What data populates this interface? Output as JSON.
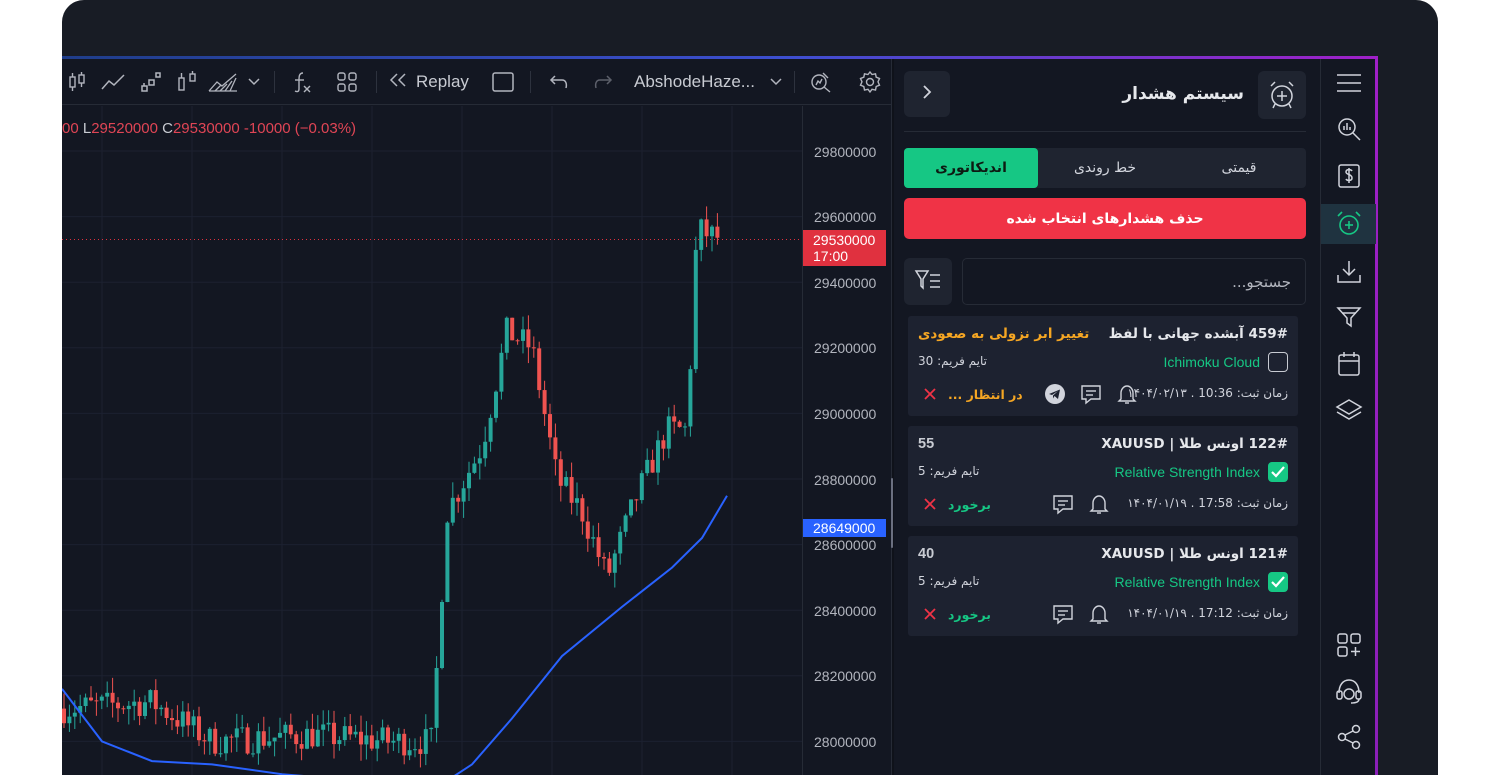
{
  "toolbar": {
    "replay_label": "Replay",
    "symbol_label": "AbshodeHaze...",
    "icons": [
      "candles-icon",
      "line-chart-icon",
      "step-chart-icon",
      "bars-icon",
      "area-chart-icon",
      "chevron-down-icon",
      "indicators-icon",
      "layouts-icon",
      "replay-icon",
      "rectangle-icon",
      "undo-icon",
      "redo-icon",
      "chevron-down-icon",
      "magnifier-chart-icon",
      "gear-icon"
    ]
  },
  "ohlc": {
    "o_value": "00",
    "l_key": "L",
    "l_value": "29520000",
    "c_key": "C",
    "c_value": "29530000",
    "change": "-10000 (−0.03%)"
  },
  "price_axis": {
    "labels": [
      "29800000",
      "29600000",
      "29400000",
      "29200000",
      "29000000",
      "28800000",
      "28600000",
      "28400000",
      "28200000",
      "28000000"
    ],
    "current_price": "29530000",
    "current_time": "17:00",
    "ma_price": "28649000"
  },
  "colors": {
    "up": "#26a69a",
    "down": "#ef5350",
    "ma_line": "#2962ff",
    "accent_green": "#16c784",
    "accent_red": "#f03346"
  },
  "panel": {
    "title": "سیستم هشدار",
    "tabs": [
      {
        "label": "قیمتی",
        "active": false
      },
      {
        "label": "خط روندی",
        "active": false
      },
      {
        "label": "اندیکاتوری",
        "active": true
      }
    ],
    "delete_label": "حذف هشدارهای انتخاب شده",
    "search_placeholder": "جستجو...",
    "alerts": [
      {
        "title": "459# آبشده جهانی با لفظ",
        "side": "تغییر ابر نزولی به صعودی",
        "indicator": "Ichimoku Cloud",
        "checked": false,
        "timeframe": "تایم فریم: 30",
        "time": "زمان ثبت: 10:36 . ۱۴۰۴/۰۲/۱۳",
        "status": "در انتظار ..."
      },
      {
        "title": "122# اونس طلا | XAUUSD",
        "side": "55",
        "indicator": "Relative Strength Index",
        "checked": true,
        "timeframe": "تایم فریم: 5",
        "time": "زمان ثبت: 17:58 . ۱۴۰۴/۰۱/۱۹",
        "status": "برخورد"
      },
      {
        "title": "121# اونس طلا | XAUUSD",
        "side": "40",
        "indicator": "Relative Strength Index",
        "checked": true,
        "timeframe": "تایم فریم: 5",
        "time": "زمان ثبت: 17:12 . ۱۴۰۴/۰۱/۱۹",
        "status": "برخورد"
      }
    ]
  },
  "rail": {
    "icons": [
      "menu-icon",
      "chart-search-icon",
      "dollar-icon",
      "alarm-icon",
      "download-icon",
      "filter-icon",
      "calendar-icon",
      "layers-icon",
      "widgets-add-icon",
      "support-icon",
      "share-icon"
    ]
  }
}
